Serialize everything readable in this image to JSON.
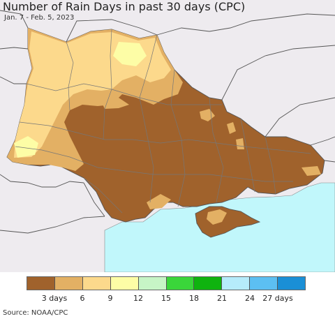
{
  "title": "Number of Rain Days in past 30 days (CPC)",
  "subtitle": "Jan. 7 - Feb. 5, 2023",
  "colors": {
    "land_outside": "#eeebef",
    "sea": "#c1f7fb",
    "border": "#555555"
  },
  "legend": {
    "colors": [
      "#a0622c",
      "#e3b064",
      "#fcd98c",
      "#fdfda6",
      "#c7f5c6",
      "#3ad63a",
      "#0fb30f",
      "#b6ecfb",
      "#5cbff2",
      "#1a8fd6"
    ],
    "ticks": [
      {
        "label": "3 days",
        "index": 1
      },
      {
        "label": "6",
        "index": 2
      },
      {
        "label": "9",
        "index": 3
      },
      {
        "label": "12",
        "index": 4
      },
      {
        "label": "15",
        "index": 5
      },
      {
        "label": "18",
        "index": 6
      },
      {
        "label": "21",
        "index": 7
      },
      {
        "label": "24",
        "index": 8
      },
      {
        "label": "27 days",
        "index": 9
      }
    ]
  },
  "source": "Source: NOAA/CPC"
}
